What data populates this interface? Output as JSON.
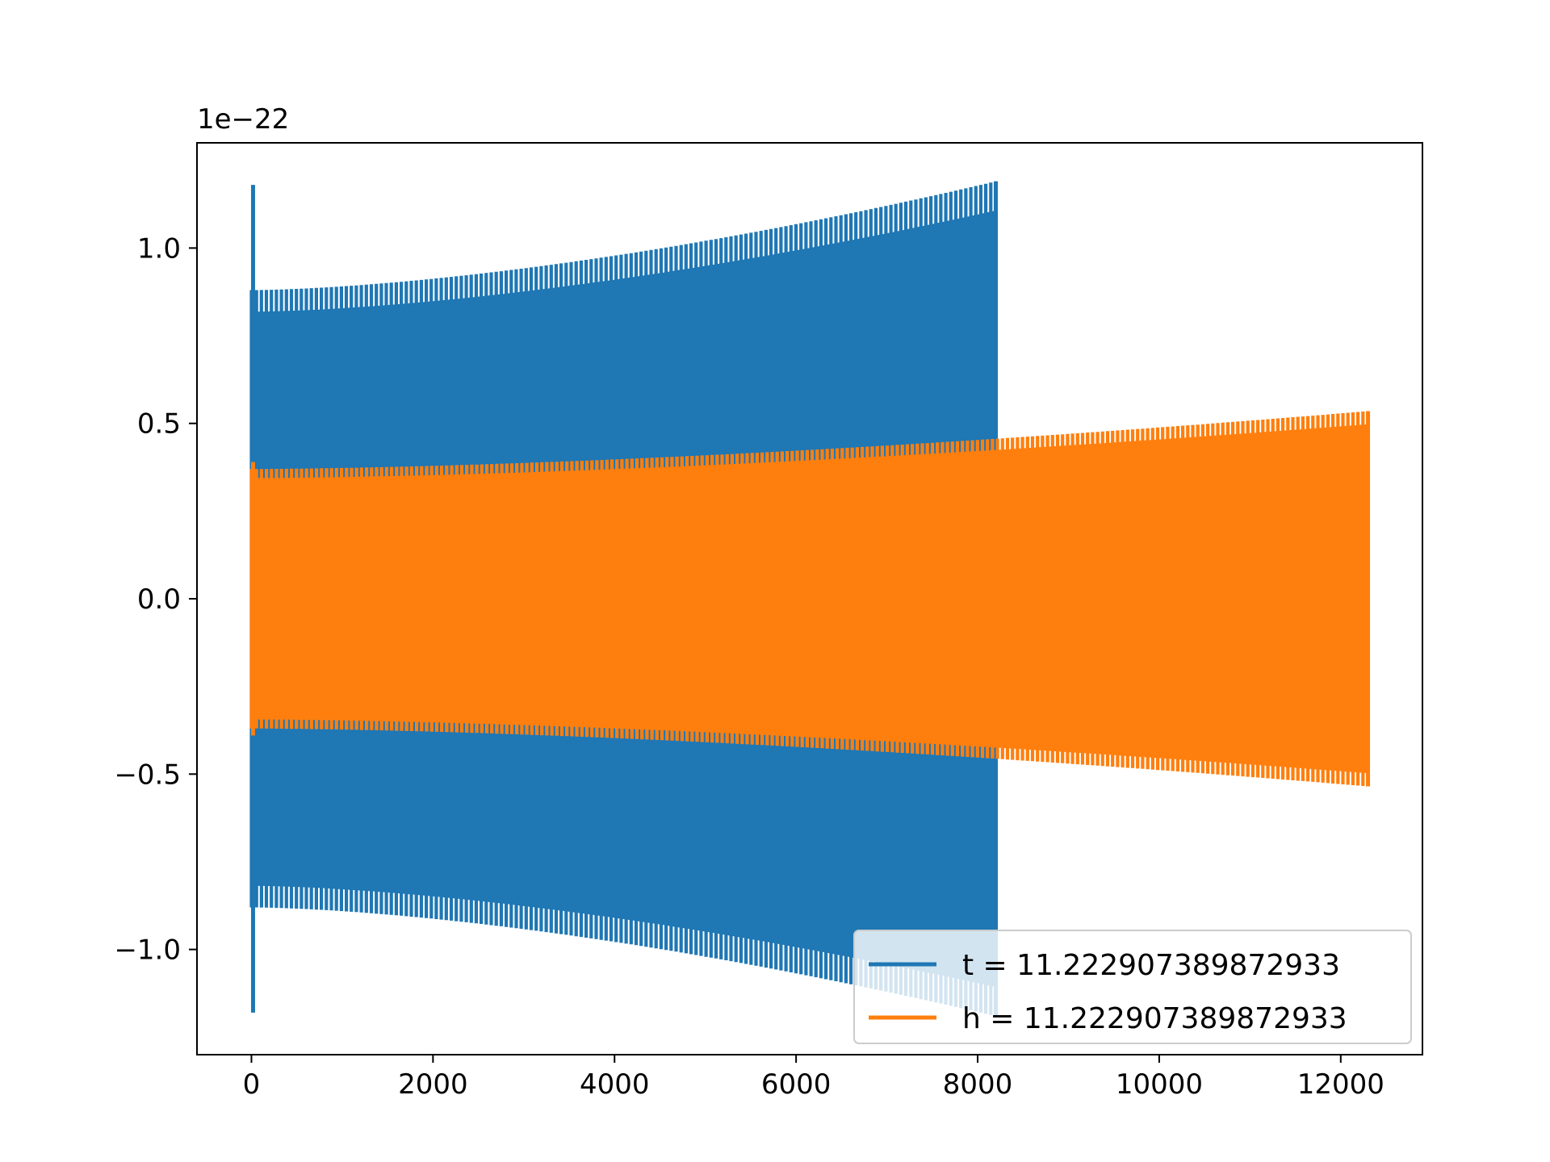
{
  "chart_data": {
    "type": "line",
    "offset_text": "1e−22",
    "xlim": [
      -600,
      12900
    ],
    "ylim": [
      -1.3,
      1.3
    ],
    "x_ticks": [
      0,
      2000,
      4000,
      6000,
      8000,
      10000,
      12000
    ],
    "x_tick_labels": [
      "0",
      "2000",
      "4000",
      "6000",
      "8000",
      "10000",
      "12000"
    ],
    "y_ticks": [
      -1.0,
      -0.5,
      0.0,
      0.5,
      1.0
    ],
    "y_tick_labels": [
      "−1.0",
      "−0.5",
      "0.0",
      "0.5",
      "1.0"
    ],
    "grid": false,
    "legend": {
      "placement": "lower-right"
    },
    "series": [
      {
        "name": "t = 11.222907389872933",
        "color": "#1f77b4",
        "x_start": 0,
        "x_end": 8200,
        "envelope_start": 0.88,
        "envelope_end": 1.19,
        "initial_spike": 1.18
      },
      {
        "name": "h = 11.222907389872933",
        "color": "#ff7f0e",
        "x_start": 0,
        "x_end": 12300,
        "envelope_start": 0.37,
        "envelope_end": 0.535,
        "initial_spike": 0.39
      }
    ]
  }
}
